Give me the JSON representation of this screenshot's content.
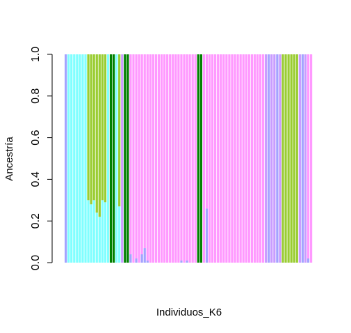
{
  "chart_data": {
    "type": "bar",
    "stacked": true,
    "xlabel": "Individuos_K6",
    "ylabel": "Ancestría",
    "ylim": [
      0,
      1
    ],
    "yticks": [
      0.0,
      0.2,
      0.4,
      0.6,
      0.8,
      1.0
    ],
    "ytick_labels": [
      "0.0",
      "0.2",
      "0.4",
      "0.6",
      "0.8",
      "1.0"
    ],
    "grid": false,
    "colors": {
      "lavender": "#a3a3ff",
      "cyan": "#80ffff",
      "olive": "#9acd32",
      "green": "#008000",
      "pink": "#ff99ff",
      "lilac": "#c99cff"
    },
    "series_order": [
      "lavender",
      "cyan",
      "olive",
      "green",
      "pink",
      "lilac"
    ],
    "individuals": [
      {
        "lavender": 1.0
      },
      {
        "cyan": 1.0
      },
      {
        "cyan": 1.0
      },
      {
        "cyan": 1.0
      },
      {
        "cyan": 1.0
      },
      {
        "cyan": 1.0
      },
      {
        "cyan": 1.0
      },
      {
        "cyan": 1.0
      },
      {
        "olive": 0.7,
        "cyan": 0.3
      },
      {
        "olive": 0.72,
        "cyan": 0.28
      },
      {
        "olive": 0.7,
        "cyan": 0.3
      },
      {
        "olive": 0.76,
        "cyan": 0.24
      },
      {
        "olive": 0.78,
        "cyan": 0.22
      },
      {
        "olive": 0.7,
        "cyan": 0.3
      },
      {
        "olive": 0.71,
        "cyan": 0.29
      },
      {
        "cyan": 1.0
      },
      {
        "green": 1.0
      },
      {
        "green": 1.0
      },
      {
        "cyan": 1.0
      },
      {
        "olive": 0.73,
        "cyan": 0.27
      },
      {
        "lilac": 1.0
      },
      {
        "green": 1.0
      },
      {
        "green": 1.0
      },
      {
        "lavender": 0.04,
        "pink": 0.96
      },
      {
        "pink": 1.0
      },
      {
        "lavender": 0.02,
        "pink": 0.98
      },
      {
        "pink": 1.0
      },
      {
        "lavender": 0.04,
        "pink": 0.96
      },
      {
        "lavender": 0.07,
        "pink": 0.93
      },
      {
        "lavender": 0.01,
        "pink": 0.99
      },
      {
        "pink": 1.0
      },
      {
        "pink": 1.0
      },
      {
        "pink": 1.0
      },
      {
        "pink": 1.0
      },
      {
        "pink": 1.0
      },
      {
        "pink": 1.0
      },
      {
        "pink": 1.0
      },
      {
        "pink": 1.0
      },
      {
        "pink": 1.0
      },
      {
        "pink": 1.0
      },
      {
        "pink": 1.0
      },
      {
        "lavender": 0.01,
        "pink": 0.99
      },
      {
        "pink": 1.0
      },
      {
        "lavender": 0.01,
        "pink": 0.99
      },
      {
        "pink": 1.0
      },
      {
        "pink": 1.0
      },
      {
        "pink": 1.0
      },
      {
        "green": 1.0
      },
      {
        "green": 1.0
      },
      {
        "pink": 1.0
      },
      {
        "lavender": 0.26,
        "pink": 0.74
      },
      {
        "pink": 1.0
      },
      {
        "pink": 1.0
      },
      {
        "pink": 1.0
      },
      {
        "pink": 1.0
      },
      {
        "pink": 1.0
      },
      {
        "pink": 1.0
      },
      {
        "pink": 1.0
      },
      {
        "pink": 1.0
      },
      {
        "pink": 1.0
      },
      {
        "pink": 1.0
      },
      {
        "pink": 1.0
      },
      {
        "pink": 1.0
      },
      {
        "pink": 1.0
      },
      {
        "pink": 1.0
      },
      {
        "pink": 1.0
      },
      {
        "pink": 1.0
      },
      {
        "pink": 1.0
      },
      {
        "pink": 1.0
      },
      {
        "pink": 1.0
      },
      {
        "pink": 1.0
      },
      {
        "lilac": 1.0
      },
      {
        "lavender": 1.0
      },
      {
        "lilac": 1.0
      },
      {
        "lilac": 1.0
      },
      {
        "lavender": 1.0
      },
      {
        "lilac": 1.0
      },
      {
        "olive": 1.0
      },
      {
        "olive": 1.0
      },
      {
        "olive": 1.0
      },
      {
        "olive": 1.0
      },
      {
        "olive": 1.0
      },
      {
        "olive": 1.0
      },
      {
        "lilac": 1.0
      },
      {
        "lavender": 1.0
      },
      {
        "lilac": 1.0
      },
      {
        "lavender": 0.02,
        "pink": 0.98
      },
      {
        "pink": 1.0
      }
    ]
  }
}
